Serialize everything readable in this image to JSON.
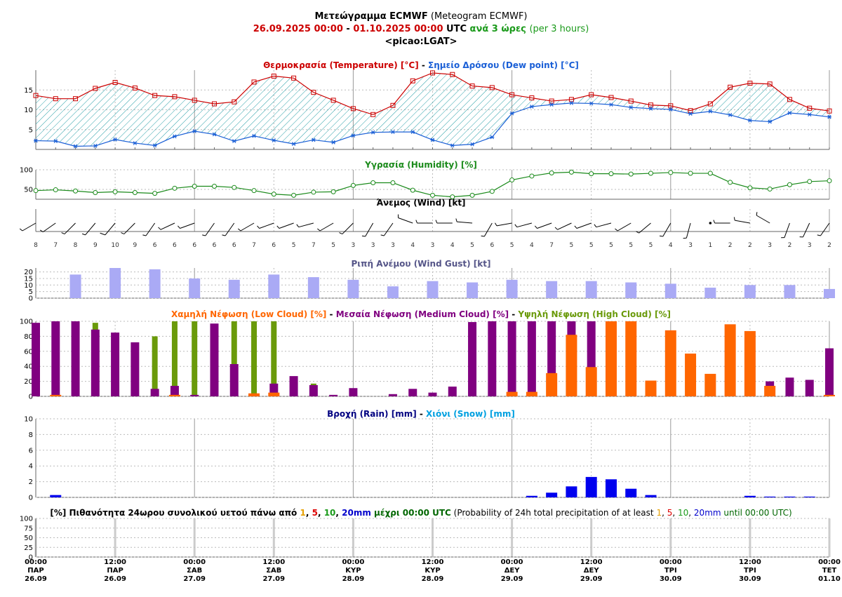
{
  "header": {
    "title_gr": "Μετεώγραμμα ECMWF",
    "title_en": "(Meteogram ECMWF)",
    "date_start": "26.09.2025 00:00",
    "dash": "-",
    "date_end": "01.10.2025 00:00",
    "utc": "UTC",
    "step_gr": "ανά 3 ώρες",
    "step_en": "(per 3 hours)",
    "station": "<picao:LGAT>"
  },
  "colors": {
    "temp": "#cc0000",
    "dew": "#1a5fd6",
    "hatch": "#2aa0a8",
    "humidity": "#1a8a1a",
    "gust": "#aaaaf5",
    "low_cloud": "#ff6600",
    "mid_cloud": "#800080",
    "high_cloud": "#6a9a0a",
    "rain": "#0000ee",
    "snow": "#00a0e0",
    "gust_title": "#555588"
  },
  "chart_data": [
    {
      "type": "line",
      "panel": "temperature",
      "title_parts": [
        "Θερμοκρασία (Temperature) [°C]",
        " - ",
        "Σημείο Δρόσου (Dew point) [°C]"
      ],
      "yticks": [
        5,
        10,
        15
      ],
      "ylim": [
        0,
        20
      ],
      "series": [
        {
          "name": "Θερμοκρασία (Temperature) [°C]",
          "values": [
            13.6,
            12.8,
            12.8,
            15.4,
            16.9,
            15.5,
            13.6,
            13.3,
            12.4,
            11.5,
            12.0,
            17.0,
            18.5,
            18.0,
            14.4,
            12.4,
            10.3,
            8.8,
            11.1,
            17.3,
            19.3,
            18.9,
            16.0,
            15.6,
            13.8,
            13.0,
            12.2,
            12.6,
            13.8,
            13.1,
            12.2,
            11.2,
            11.0,
            9.8,
            11.5,
            15.7,
            16.7,
            16.5,
            12.6,
            10.4,
            9.7
          ]
        },
        {
          "name": "Σημείο Δρόσου (Dew point) [°C]",
          "values": [
            2.2,
            2.1,
            0.8,
            0.9,
            2.5,
            1.6,
            1.0,
            3.3,
            4.6,
            3.8,
            2.1,
            3.4,
            2.3,
            1.4,
            2.4,
            1.8,
            3.5,
            4.3,
            4.4,
            4.4,
            2.4,
            1.0,
            1.3,
            3.1,
            9.1,
            10.8,
            11.3,
            11.7,
            11.6,
            11.3,
            10.6,
            10.3,
            10.1,
            9.0,
            9.6,
            8.7,
            7.3,
            7.0,
            9.2,
            8.8,
            8.2
          ]
        }
      ]
    },
    {
      "type": "line",
      "panel": "humidity",
      "title": "Υγρασία (Humidity) [%]",
      "yticks": [
        50,
        100
      ],
      "ylim": [
        25,
        100
      ],
      "values": [
        47,
        49,
        46,
        42,
        44,
        42,
        40,
        53,
        58,
        58,
        55,
        47,
        38,
        35,
        43,
        44,
        60,
        67,
        67,
        48,
        35,
        31,
        35,
        45,
        74,
        84,
        92,
        94,
        90,
        90,
        89,
        91,
        93,
        91,
        91,
        68,
        54,
        51,
        62,
        70,
        72
      ]
    },
    {
      "type": "table",
      "panel": "wind",
      "title": "Άνεμος (Wind) [kt]",
      "speeds": [
        8,
        7,
        8,
        9,
        10,
        9,
        6,
        6,
        6,
        6,
        6,
        7,
        6,
        5,
        7,
        5,
        3,
        3,
        3,
        4,
        3,
        4,
        5,
        6,
        5,
        4,
        7,
        5,
        5,
        5,
        5,
        5,
        4,
        3,
        1,
        2,
        2,
        3,
        2,
        3,
        2
      ],
      "directions_deg": [
        240,
        235,
        225,
        220,
        220,
        225,
        215,
        245,
        250,
        215,
        215,
        240,
        250,
        250,
        255,
        240,
        225,
        210,
        215,
        290,
        270,
        270,
        275,
        210,
        260,
        255,
        250,
        245,
        250,
        255,
        240,
        230,
        210,
        195,
        0,
        270,
        280,
        300,
        200,
        205,
        215
      ]
    },
    {
      "type": "bar",
      "panel": "gust",
      "title": "Ριπή Ανέμου (Wind Gust) [kt]",
      "yticks": [
        0,
        5,
        10,
        15,
        20
      ],
      "ylim": [
        0,
        23
      ],
      "values": [
        18,
        23,
        22,
        15,
        14,
        18,
        16,
        14,
        9,
        13,
        12,
        14,
        13,
        13,
        12,
        11,
        8,
        10,
        10,
        7
      ]
    },
    {
      "type": "bar",
      "panel": "cloud",
      "title_parts": [
        "Χαμηλή Νέφωση (Low Cloud) [%]",
        " - ",
        "Μεσαία Νέφωση (Medium Cloud) [%]",
        " - ",
        "Υψηλή Νέφωση (High Cloud) [%]"
      ],
      "yticks": [
        0,
        20,
        40,
        60,
        80,
        100
      ],
      "ylim": [
        0,
        100
      ],
      "series": [
        {
          "name": "Υψηλή Νέφωση (High Cloud) [%]",
          "values": [
            0,
            0,
            0,
            98,
            0,
            0,
            80,
            100,
            100,
            0,
            100,
            100,
            100,
            0,
            17,
            0,
            0,
            0,
            0,
            0,
            0,
            0,
            0,
            0,
            0,
            0,
            0,
            0,
            100,
            100,
            100,
            0,
            0,
            0,
            0,
            0,
            0,
            0,
            0,
            0,
            0
          ]
        },
        {
          "name": "Μεσαία Νέφωση (Medium Cloud) [%]",
          "values": [
            98,
            100,
            100,
            89,
            85,
            72,
            10,
            14,
            2,
            97,
            43,
            0,
            17,
            27,
            15,
            2,
            11,
            0,
            3,
            10,
            5,
            13,
            99,
            100,
            100,
            100,
            100,
            100,
            100,
            0,
            0,
            0,
            0,
            0,
            0,
            0,
            0,
            20,
            25,
            22,
            64
          ]
        },
        {
          "name": "Χαμηλή Νέφωση (Low Cloud) [%]",
          "values": [
            0,
            2,
            0,
            0,
            0,
            0,
            0,
            2,
            0,
            0,
            0,
            4,
            5,
            0,
            0,
            0,
            0,
            0,
            0,
            0,
            0,
            0,
            0,
            0,
            6,
            6,
            31,
            82,
            39,
            100,
            100,
            21,
            88,
            57,
            30,
            96,
            87,
            14,
            0,
            0,
            2
          ]
        }
      ]
    },
    {
      "type": "bar",
      "panel": "precipitation",
      "title_parts": [
        "Βροχή (Rain) [mm]",
        " - ",
        "Χιόνι (Snow) [mm]"
      ],
      "yticks": [
        0,
        2,
        4,
        6,
        8,
        10
      ],
      "ylim": [
        0,
        10
      ],
      "series": [
        {
          "name": "Βροχή (Rain) [mm]",
          "values": [
            0,
            0.3,
            0,
            0,
            0,
            0,
            0,
            0,
            0,
            0,
            0,
            0,
            0,
            0,
            0,
            0,
            0,
            0,
            0,
            0,
            0,
            0,
            0,
            0,
            0,
            0.2,
            0.6,
            1.4,
            2.6,
            2.3,
            1.1,
            0.3,
            0,
            0,
            0,
            0,
            0.2,
            0.1,
            0.1,
            0.1,
            0
          ]
        },
        {
          "name": "Χιόνι (Snow) [mm]",
          "values": []
        }
      ]
    },
    {
      "type": "bar",
      "panel": "probability",
      "title_parts": [
        "[%] Πιθανότητα 24ωρου συνολικού υετού πάνω από ",
        "1",
        ", ",
        "5",
        ", ",
        "10",
        ", ",
        "20mm",
        " μέχρι 00:00 UTC",
        " (Probability of 24h total precipitation of at least ",
        "1",
        ", ",
        "5",
        ", ",
        "10",
        ", ",
        "20mm",
        " until 00:00 UTC)"
      ],
      "yticks": [
        0,
        25,
        50,
        75,
        100
      ],
      "ylim": [
        0,
        100
      ],
      "values": []
    }
  ],
  "xaxis": {
    "times": [
      "00:00",
      "12:00",
      "00:00",
      "12:00",
      "00:00",
      "12:00",
      "00:00",
      "12:00",
      "00:00",
      "12:00",
      "00:00"
    ],
    "days": [
      "ΠΑΡ",
      "ΠΑΡ",
      "ΣΑΒ",
      "ΣΑΒ",
      "ΚΥΡ",
      "ΚΥΡ",
      "ΔΕΥ",
      "ΔΕΥ",
      "ΤΡΙ",
      "ΤΡΙ",
      "ΤΕΤ"
    ],
    "dates": [
      "26.09",
      "26.09",
      "27.09",
      "27.09",
      "28.09",
      "28.09",
      "29.09",
      "29.09",
      "30.09",
      "30.09",
      "01.10"
    ]
  }
}
